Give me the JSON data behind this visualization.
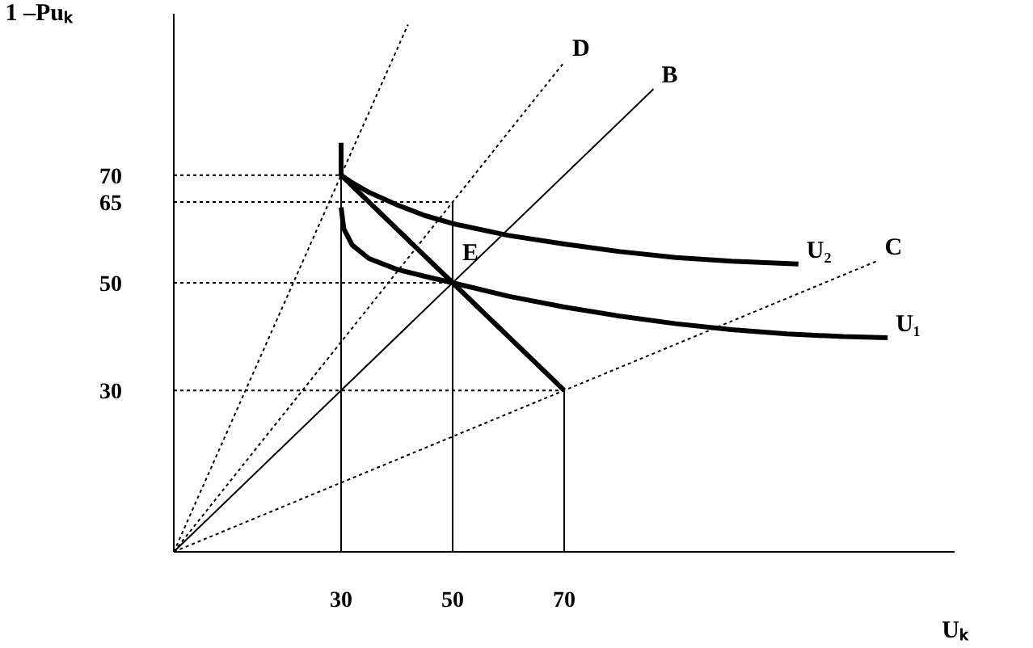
{
  "chart_data": {
    "type": "line",
    "xlabel": "Uₖ",
    "ylabel": "1 –Puₖ",
    "xlim": [
      0,
      140
    ],
    "ylim": [
      0,
      100
    ],
    "xticks": [
      30,
      50,
      70
    ],
    "yticks": [
      30,
      50,
      65,
      70
    ],
    "annotations": [
      {
        "text": "E",
        "x": 50,
        "y": 50
      }
    ],
    "series": [
      {
        "color": "#000000",
        "line_style": "solid",
        "x": [
          30,
          30,
          50,
          70
        ],
        "values": [
          76,
          70,
          50,
          30
        ]
      },
      {
        "name": "U₁",
        "color": "#000000",
        "line_style": "solid",
        "x": [
          30,
          30.5,
          32,
          35,
          40,
          45,
          50,
          60,
          70,
          80,
          90,
          100,
          110,
          120,
          128
        ],
        "values": [
          64,
          60,
          57,
          54.5,
          52.5,
          51.2,
          50,
          47.5,
          45.5,
          43.8,
          42.4,
          41.3,
          40.5,
          40,
          39.8
        ]
      },
      {
        "name": "U₂",
        "color": "#000000",
        "line_style": "solid",
        "x": [
          30,
          32,
          35,
          40,
          45,
          50,
          60,
          70,
          80,
          90,
          100,
          112
        ],
        "values": [
          70,
          68.6,
          66.8,
          64.5,
          62.5,
          61,
          58.8,
          57.2,
          55.8,
          54.7,
          54,
          53.5
        ]
      },
      {
        "color": "#000000",
        "line_style": "dotted",
        "x": [
          0,
          42
        ],
        "values": [
          0,
          98
        ]
      },
      {
        "name": "D",
        "color": "#000000",
        "line_style": "dotted",
        "x": [
          0,
          70
        ],
        "values": [
          0,
          91
        ]
      },
      {
        "name": "B",
        "color": "#000000",
        "line_style": "solid",
        "x": [
          0,
          86
        ],
        "values": [
          0,
          86
        ]
      },
      {
        "name": "C",
        "color": "#000000",
        "line_style": "dotted",
        "x": [
          0,
          126
        ],
        "values": [
          0,
          54
        ]
      },
      {
        "color": "#000000",
        "line_style": "dotted",
        "x": [
          0,
          30
        ],
        "values": [
          70,
          70
        ]
      },
      {
        "color": "#000000",
        "line_style": "dotted",
        "x": [
          0,
          50
        ],
        "values": [
          65,
          65
        ]
      },
      {
        "color": "#000000",
        "line_style": "dotted",
        "x": [
          0,
          50
        ],
        "values": [
          50,
          50
        ]
      },
      {
        "color": "#000000",
        "line_style": "dotted",
        "x": [
          0,
          70
        ],
        "values": [
          30,
          30
        ]
      },
      {
        "color": "#000000",
        "line_style": "solid",
        "x": [
          30,
          30
        ],
        "values": [
          0,
          70
        ]
      },
      {
        "color": "#000000",
        "line_style": "solid",
        "x": [
          50,
          50
        ],
        "values": [
          0,
          65
        ]
      },
      {
        "color": "#000000",
        "line_style": "solid",
        "x": [
          70,
          70
        ],
        "values": [
          0,
          30
        ]
      }
    ]
  }
}
